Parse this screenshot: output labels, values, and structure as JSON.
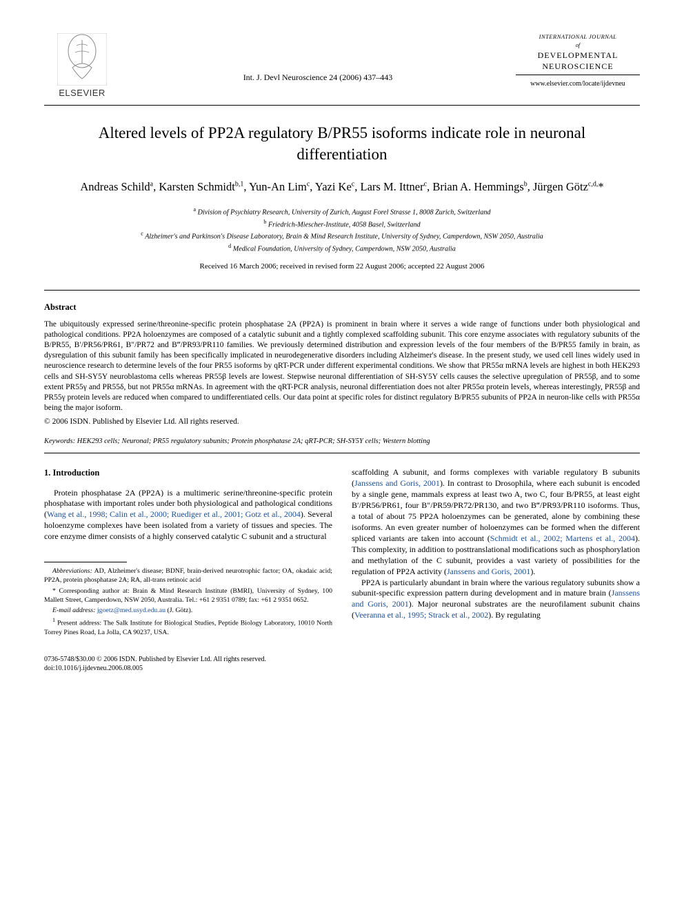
{
  "header": {
    "publisher_name": "ELSEVIER",
    "journal_ref": "Int. J. Devl Neuroscience 24 (2006) 437–443",
    "journal_intl": "INTERNATIONAL JOURNAL",
    "journal_of": "of",
    "journal_title_line1": "DEVELOPMENTAL",
    "journal_title_line2": "NEUROSCIENCE",
    "journal_url": "www.elsevier.com/locate/ijdevneu"
  },
  "title": "Altered levels of PP2A regulatory B/PR55 isoforms indicate role in neuronal differentiation",
  "authors_html": "Andreas Schild<sup>a</sup>, Karsten Schmidt<sup>b,1</sup>, Yun-An Lim<sup>c</sup>, Yazi Ke<sup>c</sup>, Lars M. Ittner<sup>c</sup>, Brian A. Hemmings<sup>b</sup>, Jürgen Götz<sup>c,d,</sup>*",
  "affiliations": {
    "a": "Division of Psychiatry Research, University of Zurich, August Forel Strasse 1, 8008 Zurich, Switzerland",
    "b": "Friedrich-Miescher-Institute, 4058 Basel, Switzerland",
    "c": "Alzheimer's and Parkinson's Disease Laboratory, Brain & Mind Research Institute, University of Sydney, Camperdown, NSW 2050, Australia",
    "d": "Medical Foundation, University of Sydney, Camperdown, NSW 2050, Australia"
  },
  "history": "Received 16 March 2006; received in revised form 22 August 2006; accepted 22 August 2006",
  "abstract": {
    "heading": "Abstract",
    "text": "The ubiquitously expressed serine/threonine-specific protein phosphatase 2A (PP2A) is prominent in brain where it serves a wide range of functions under both physiological and pathological conditions. PP2A holoenzymes are composed of a catalytic subunit and a tightly complexed scaffolding subunit. This core enzyme associates with regulatory subunits of the B/PR55, B′/PR56/PR61, B″/PR72 and B‴/PR93/PR110 families. We previously determined distribution and expression levels of the four members of the B/PR55 family in brain, as dysregulation of this subunit family has been specifically implicated in neurodegenerative disorders including Alzheimer's disease. In the present study, we used cell lines widely used in neuroscience research to determine levels of the four PR55 isoforms by qRT-PCR under different experimental conditions. We show that PR55α mRNA levels are highest in both HEK293 cells and SH-SY5Y neuroblastoma cells whereas PR55β levels are lowest. Stepwise neuronal differentiation of SH-SY5Y cells causes the selective upregulation of PR55β, and to some extent PR55γ and PR55δ, but not PR55α mRNAs. In agreement with the qRT-PCR analysis, neuronal differentiation does not alter PR55α protein levels, whereas interestingly, PR55β and PR55γ protein levels are reduced when compared to undifferentiated cells. Our data point at specific roles for distinct regulatory B/PR55 subunits of PP2A in neuron-like cells with PR55α being the major isoform.",
    "copyright": "© 2006 ISDN. Published by Elsevier Ltd. All rights reserved."
  },
  "keywords": {
    "label": "Keywords:",
    "text": "HEK293 cells; Neuronal; PR55 regulatory subunits; Protein phosphatase 2A; qRT-PCR; SH-SY5Y cells; Western blotting"
  },
  "intro": {
    "heading": "1. Introduction",
    "left_para": "Protein phosphatase 2A (PP2A) is a multimeric serine/threonine-specific protein phosphatase with important roles under both physiological and pathological conditions (",
    "left_cite": "Wang et al., 1998; Calin et al., 2000; Ruediger et al., 2001; Gotz et al., 2004",
    "left_para_cont": "). Several holoenzyme complexes have been isolated from a variety of tissues and species. The core enzyme dimer consists of a highly conserved catalytic C subunit and a structural",
    "right_para1_a": "scaffolding A subunit, and forms complexes with variable regulatory B subunits (",
    "right_cite1": "Janssens and Goris, 2001",
    "right_para1_b": "). In contrast to Drosophila, where each subunit is encoded by a single gene, mammals express at least two A, two C, four B/PR55, at least eight B′/PR56/PR61, four B″/PR59/PR72/PR130, and two B‴/PR93/PR110 isoforms. Thus, a total of about 75 PP2A holoenzymes can be generated, alone by combining these isoforms. An even greater number of holoenzymes can be formed when the different spliced variants are taken into account (",
    "right_cite2": "Schmidt et al., 2002; Martens et al., 2004",
    "right_para1_c": "). This complexity, in addition to posttranslational modifications such as phosphorylation and methylation of the C subunit, provides a vast variety of possibilities for the regulation of PP2A activity (",
    "right_cite3": "Janssens and Goris, 2001",
    "right_para1_d": ").",
    "right_para2_a": "PP2A is particularly abundant in brain where the various regulatory subunits show a subunit-specific expression pattern during development and in mature brain (",
    "right_cite4": "Janssens and Goris, 2001",
    "right_para2_b": "). Major neuronal substrates are the neurofilament subunit chains (",
    "right_cite5": "Veeranna et al., 1995; Strack et al., 2002",
    "right_para2_c": "). By regulating"
  },
  "footnotes": {
    "abbrev_label": "Abbreviations:",
    "abbrev_text": "AD, Alzheimer's disease; BDNF, brain-derived neurotrophic factor; OA, okadaic acid; PP2A, protein phosphatase 2A; RA, all-trans retinoic acid",
    "corr_text": "* Corresponding author at: Brain & Mind Research Institute (BMRI), University of Sydney, 100 Mallett Street, Camperdown, NSW 2050, Australia. Tel.: +61 2 9351 0789; fax: +61 2 9351 0652.",
    "email_label": "E-mail address:",
    "email": "jgoetz@med.usyd.edu.au",
    "email_suffix": "(J. Götz).",
    "present_label": "1",
    "present_text": "Present address: The Salk Institute for Biological Studies, Peptide Biology Laboratory, 10010 North Torrey Pines Road, La Jolla, CA 90237, USA."
  },
  "footer": {
    "issn_line": "0736-5748/$30.00 © 2006 ISDN. Published by Elsevier Ltd. All rights reserved.",
    "doi_line": "doi:10.1016/j.ijdevneu.2006.08.005"
  },
  "colors": {
    "text": "#000000",
    "link": "#1a4fa3",
    "background": "#ffffff",
    "logo_orange": "#ff6b00"
  }
}
